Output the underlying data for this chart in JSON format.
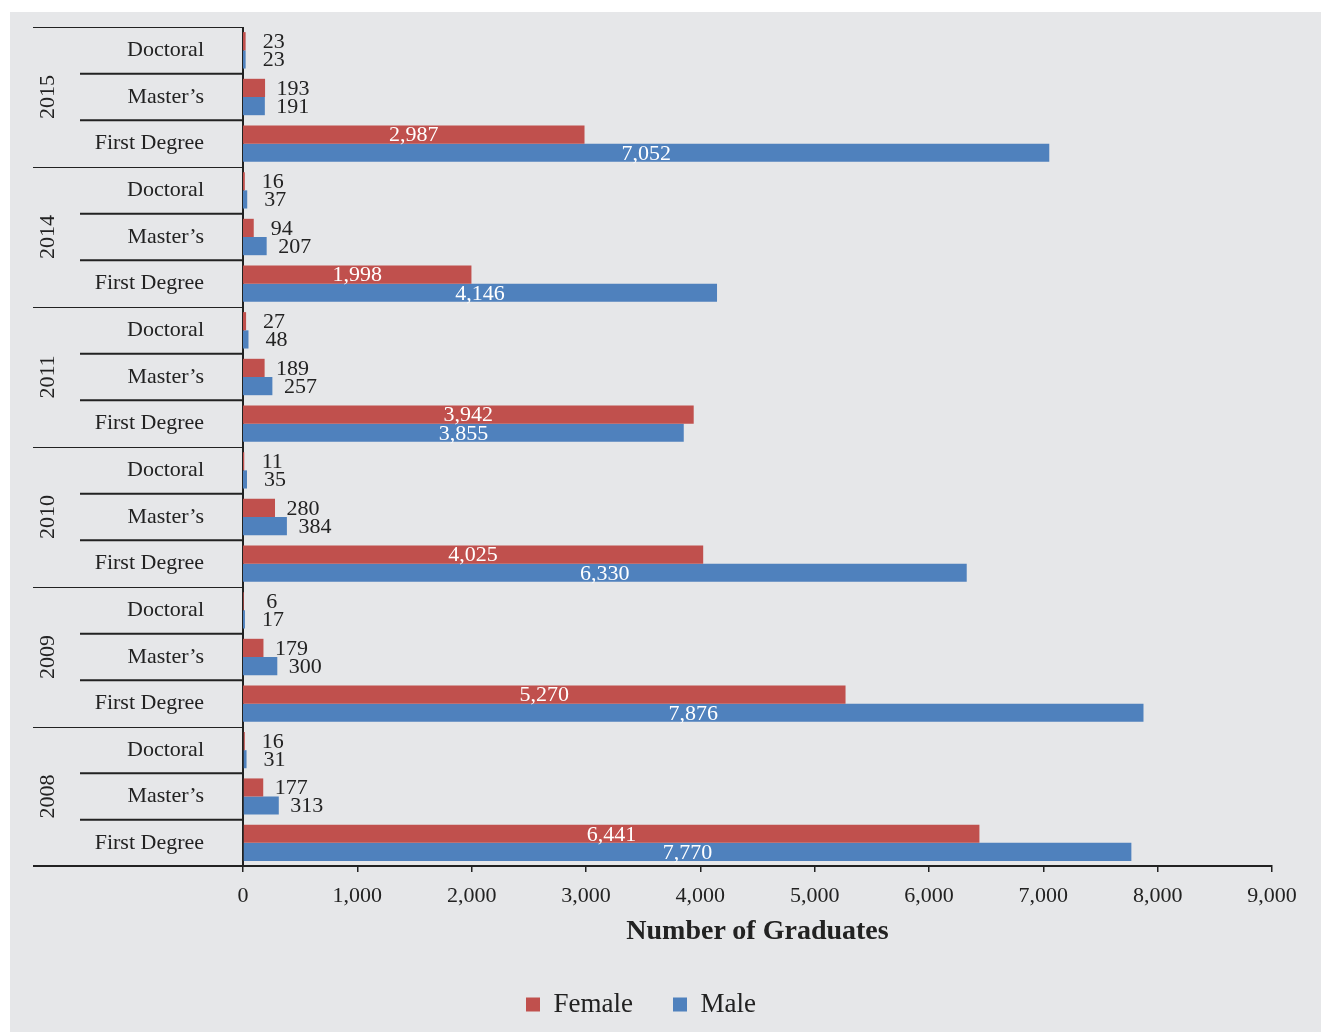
{
  "chart_data": [
    {
      "type": "bar",
      "orientation": "horizontal",
      "title": "2015",
      "categories": [
        "Doctoral",
        "Master’s",
        "First Degree"
      ],
      "series": [
        {
          "color": "#c0504d",
          "values": [
            23,
            193,
            2987
          ],
          "value_labels": [
            "23",
            "193",
            "2,987"
          ]
        },
        {
          "color": "#4f81bd",
          "values": [
            23,
            191,
            7052
          ],
          "value_labels": [
            "23",
            "191",
            "7,052"
          ]
        }
      ],
      "xlim": [
        0,
        9000
      ],
      "tick_labels": "y"
    },
    {
      "type": "bar",
      "orientation": "horizontal",
      "title": "2014",
      "categories": [
        "Doctoral",
        "Master’s",
        "First Degree"
      ],
      "series": [
        {
          "color": "#c0504d",
          "values": [
            16,
            94,
            1998
          ],
          "value_labels": [
            "16",
            "94",
            "1,998"
          ]
        },
        {
          "color": "#4f81bd",
          "values": [
            37,
            207,
            4146
          ],
          "value_labels": [
            "37",
            "207",
            "4,146"
          ]
        }
      ],
      "xlim": [
        0,
        9000
      ],
      "tick_labels": "y"
    },
    {
      "type": "bar",
      "orientation": "horizontal",
      "title": "2011",
      "categories": [
        "Doctoral",
        "Master’s",
        "First Degree"
      ],
      "series": [
        {
          "color": "#c0504d",
          "values": [
            27,
            189,
            3942
          ],
          "value_labels": [
            "27",
            "189",
            "3,942"
          ]
        },
        {
          "color": "#4f81bd",
          "values": [
            48,
            257,
            3855
          ],
          "value_labels": [
            "48",
            "257",
            "3,855"
          ]
        }
      ],
      "xlim": [
        0,
        9000
      ],
      "tick_labels": "y"
    },
    {
      "type": "bar",
      "orientation": "horizontal",
      "title": "2010",
      "categories": [
        "Doctoral",
        "Master’s",
        "First Degree"
      ],
      "series": [
        {
          "color": "#c0504d",
          "values": [
            11,
            280,
            4025
          ],
          "value_labels": [
            "11",
            "280",
            "4,025"
          ]
        },
        {
          "color": "#4f81bd",
          "values": [
            35,
            384,
            6330
          ],
          "value_labels": [
            "35",
            "384",
            "6,330"
          ]
        }
      ],
      "xlim": [
        0,
        9000
      ],
      "tick_labels": "y"
    },
    {
      "type": "bar",
      "orientation": "horizontal",
      "title": "2009",
      "categories": [
        "Doctoral",
        "Master’s",
        "First Degree"
      ],
      "series": [
        {
          "color": "#c0504d",
          "values": [
            6,
            179,
            5270
          ],
          "value_labels": [
            "6",
            "179",
            "5,270"
          ]
        },
        {
          "color": "#4f81bd",
          "values": [
            17,
            300,
            7876
          ],
          "value_labels": [
            "17",
            "300",
            "7,876"
          ]
        }
      ],
      "xlim": [
        0,
        9000
      ],
      "tick_labels": "y"
    },
    {
      "type": "bar",
      "orientation": "horizontal",
      "title": "2008",
      "categories": [
        "Doctoral",
        "Master’s",
        "First Degree"
      ],
      "series": [
        {
          "name": "Female",
          "color": "#c0504d",
          "values": [
            16,
            177,
            6441
          ],
          "value_labels": [
            "16",
            "177",
            "6,441"
          ]
        },
        {
          "name": "Male",
          "color": "#4f81bd",
          "values": [
            31,
            313,
            7770
          ],
          "value_labels": [
            "31",
            "313",
            "7,770"
          ]
        }
      ],
      "xlabel": "Number of Graduates",
      "xlim": [
        0,
        9000
      ],
      "xticks": [
        0,
        {
          "value": 1000,
          "label": "1,000"
        },
        {
          "value": 2000,
          "label": "2,000"
        },
        {
          "value": 3000,
          "label": "3,000"
        },
        {
          "value": 4000,
          "label": "4,000"
        },
        {
          "value": 5000,
          "label": "5,000"
        },
        {
          "value": 6000,
          "label": "6,000"
        },
        {
          "value": 7000,
          "label": "7,000"
        },
        {
          "value": 8000,
          "label": "8,000"
        },
        {
          "value": 9000,
          "label": "9,000"
        }
      ],
      "legend": "bottom"
    }
  ]
}
